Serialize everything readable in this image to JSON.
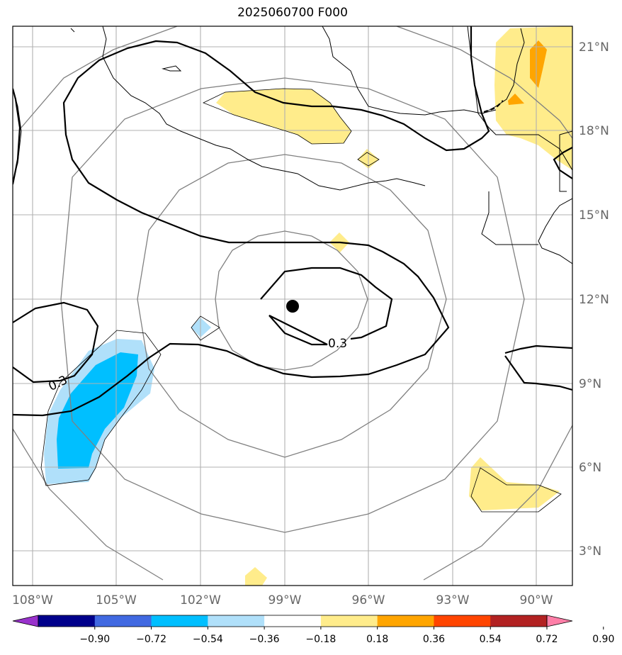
{
  "title": "2025060700 F000",
  "map": {
    "lon_ticks": [
      {
        "lon": -108,
        "label": "108°W"
      },
      {
        "lon": -105,
        "label": "105°W"
      },
      {
        "lon": -102,
        "label": "102°W"
      },
      {
        "lon": -99,
        "label": "99°W"
      },
      {
        "lon": -96,
        "label": "96°W"
      },
      {
        "lon": -93,
        "label": "93°W"
      },
      {
        "lon": -90,
        "label": "90°W"
      }
    ],
    "lat_ticks": [
      {
        "lat": 3,
        "label": "3°N"
      },
      {
        "lat": 6,
        "label": "6°N"
      },
      {
        "lat": 9,
        "label": "9°N"
      },
      {
        "lat": 12,
        "label": "12°N"
      },
      {
        "lat": 15,
        "label": "15°N"
      },
      {
        "lat": 18,
        "label": "18°N"
      },
      {
        "lat": 21,
        "label": "21°N"
      }
    ],
    "contour_labels": [
      "0.3",
      "0.3"
    ],
    "center_marker": {
      "lon": -98.6,
      "lat": 11.7
    },
    "colors": {
      "grid": "#b0b0b0",
      "range_ring": "#808080",
      "coast": "#000000",
      "marker": "#000000"
    }
  },
  "colorbar": {
    "colors": [
      "#9932cc",
      "#00008b",
      "#4169e1",
      "#00bfff",
      "#b0e0fa",
      "#ffffff",
      "#ffec8b",
      "#ffa500",
      "#ff4500",
      "#b22222",
      "#ff7fa8"
    ],
    "labels": [
      "−0.90",
      "−0.72",
      "−0.54",
      "−0.36",
      "−0.18",
      "0.18",
      "0.36",
      "0.54",
      "0.72",
      "0.90"
    ]
  }
}
